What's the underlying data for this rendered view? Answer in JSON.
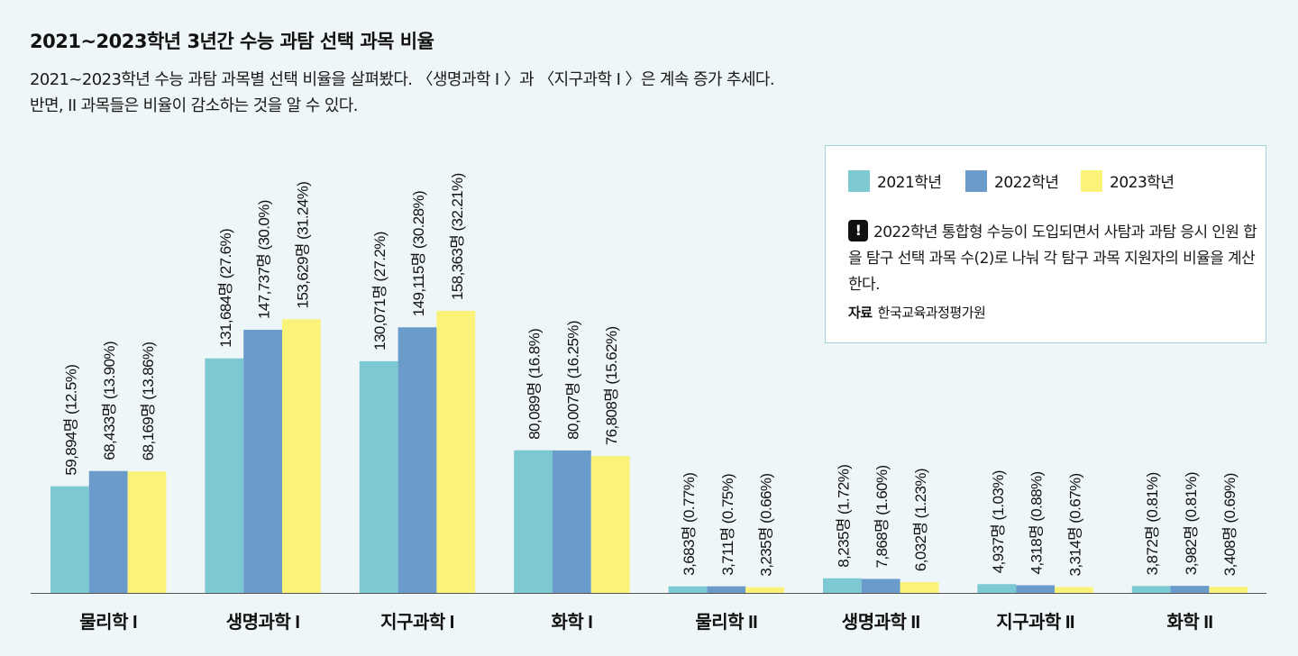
{
  "title": "2021~2023학년 3년간 수능 과탐 선택 과목 비율",
  "subtitle_line1": "2021~2023학년 수능 과탐 과목별 선택 비율을 살펴봤다. 〈생명과학 I 〉과 〈지구과학 I 〉은 계속 증가 추세다.",
  "subtitle_line2": "반면, II 과목들은 비율이 감소하는 것을 알 수 있다.",
  "legend": [
    {
      "label": "2021학년",
      "color": "#7cc9d3"
    },
    {
      "label": "2022학년",
      "color": "#6a9bcb"
    },
    {
      "label": "2023학년",
      "color": "#fbf27a"
    }
  ],
  "note": {
    "icon": "!",
    "text": "2022학년 통합형 수능이 도입되면서 사탐과 과탐 응시 인원 합을 탐구 선택 과목 수(2)로 나눠 각 탐구 과목 지원자의 비율을 계산한다.",
    "source_label": "자료",
    "source_text": "한국교육과정평가원"
  },
  "chart_data": {
    "type": "bar",
    "categories": [
      "물리학 I",
      "생명과학 I",
      "지구과학 I",
      "화학 I",
      "물리학 II",
      "생명과학 II",
      "지구과학 II",
      "화학 II"
    ],
    "ylim": [
      0,
      172000
    ],
    "series": [
      {
        "name": "2021학년",
        "color": "#7cc9d3",
        "values": [
          59894,
          131684,
          130071,
          80089,
          3683,
          8235,
          4937,
          3872
        ],
        "labels": [
          "59,894명 (12.5%)",
          "131,684명 (27.6%)",
          "130,071명 (27.2%)",
          "80,089명 (16.8%)",
          "3,683명 (0.77%)",
          "8,235명 (1.72%)",
          "4,937명 (1.03%)",
          "3,872명 (0.81%)"
        ]
      },
      {
        "name": "2022학년",
        "color": "#6a9bcb",
        "values": [
          68433,
          147737,
          149115,
          80007,
          3711,
          7868,
          4318,
          3982
        ],
        "labels": [
          "68,433명 (13.90%)",
          "147,737명 (30.0%)",
          "149,115명 (30.28%)",
          "80,007명 (16.25%)",
          "3,711명 (0.75%)",
          "7,868명 (1.60%)",
          "4,318명 (0.88%)",
          "3,982명 (0.81%)"
        ]
      },
      {
        "name": "2023학년",
        "color": "#fbf27a",
        "values": [
          68169,
          153629,
          158363,
          76808,
          3235,
          6032,
          3314,
          3408
        ],
        "labels": [
          "68,169명 (13.86%)",
          "153,629명 (31.24%)",
          "158,363명 (32.21%)",
          "76,808명 (15.62%)",
          "3,235명 (0.66%)",
          "6,032명 (1.23%)",
          "3,314명 (0.67%)",
          "3,408명 (0.69%)"
        ]
      }
    ]
  }
}
